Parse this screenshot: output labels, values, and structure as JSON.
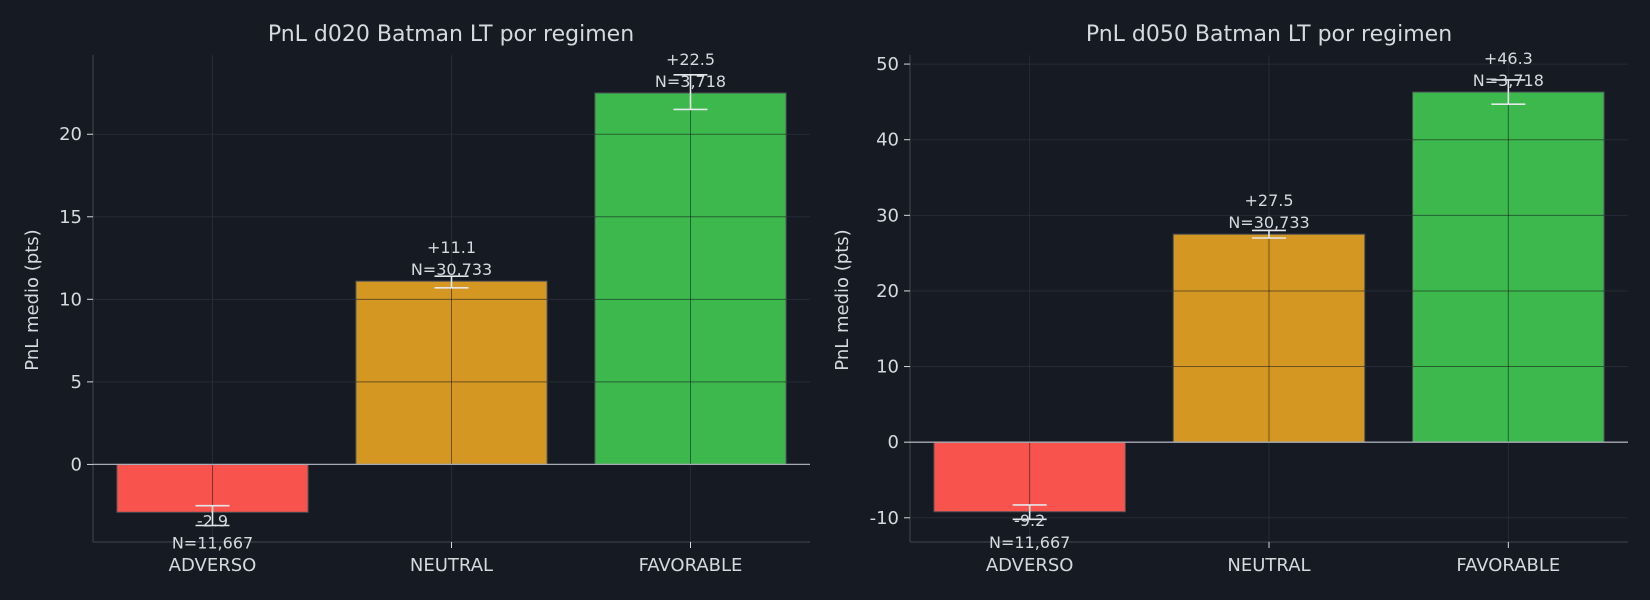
{
  "chart_data": [
    {
      "type": "bar",
      "title": "PnL d020 Batman LT por regimen",
      "xlabel": "",
      "ylabel": "PnL medio (pts)",
      "categories": [
        "ADVERSO",
        "NEUTRAL",
        "FAVORABLE"
      ],
      "values": [
        -2.9,
        11.1,
        22.5
      ],
      "error_low": [
        -3.7,
        10.7,
        21.5
      ],
      "error_high": [
        -2.5,
        11.4,
        23.6
      ],
      "value_labels": [
        "-2.9",
        "+11.1",
        "+22.5"
      ],
      "count_labels": [
        "N=11,667",
        "N=30,733",
        "N=3,718"
      ],
      "colors": [
        "#f9534d",
        "#d39722",
        "#3db84d"
      ],
      "ylim": [
        -4.7,
        24.8
      ],
      "yticks": [
        0,
        5,
        10,
        15,
        20
      ],
      "grid": true,
      "legend": "none"
    },
    {
      "type": "bar",
      "title": "PnL d050 Batman LT por regimen",
      "xlabel": "",
      "ylabel": "PnL medio (pts)",
      "categories": [
        "ADVERSO",
        "NEUTRAL",
        "FAVORABLE"
      ],
      "values": [
        -9.2,
        27.5,
        46.3
      ],
      "error_low": [
        -10.2,
        27.0,
        44.7
      ],
      "error_high": [
        -8.3,
        28.0,
        47.9
      ],
      "value_labels": [
        "-9.2",
        "+27.5",
        "+46.3"
      ],
      "count_labels": [
        "N=11,667",
        "N=30,733",
        "N=3,718"
      ],
      "colors": [
        "#f9534d",
        "#d39722",
        "#3db84d"
      ],
      "ylim": [
        -13.2,
        51.2
      ],
      "yticks": [
        -10,
        0,
        10,
        20,
        30,
        40,
        50
      ],
      "grid": true,
      "legend": "none"
    }
  ]
}
